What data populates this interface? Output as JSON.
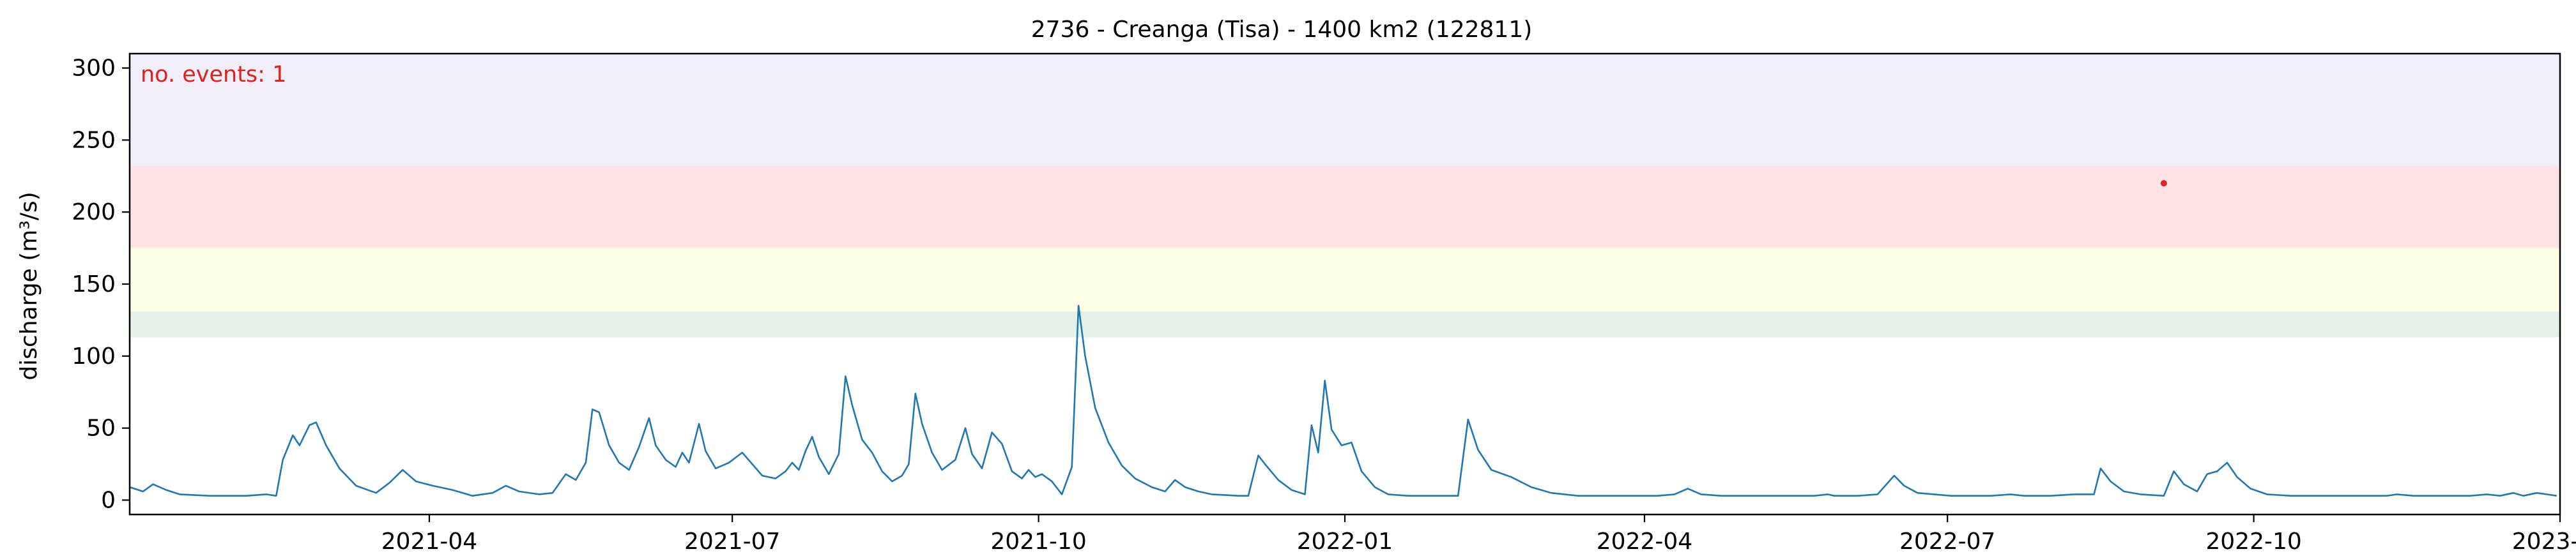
{
  "chart_data": {
    "type": "line",
    "title": "2736 - Creanga (Tisa) - 1400 km2 (122811)",
    "xlabel": "",
    "ylabel": "discharge (m³/s)",
    "xlim": [
      "2021-01-01",
      "2023-01-01"
    ],
    "ylim": [
      -10,
      310
    ],
    "x_ticks": [
      "2021-04",
      "2021-07",
      "2021-10",
      "2022-01",
      "2022-04",
      "2022-07",
      "2022-10",
      "2023-01"
    ],
    "y_ticks": [
      0,
      50,
      100,
      150,
      200,
      250,
      300
    ],
    "grid": false,
    "annotation": "no. events: 1",
    "threshold_bands": [
      {
        "from": 113,
        "to": 131,
        "color": "#e3f1e6"
      },
      {
        "from": 131,
        "to": 175,
        "color": "#fefee5"
      },
      {
        "from": 175,
        "to": 232,
        "color": "#fee2e4"
      },
      {
        "from": 232,
        "to": 310,
        "color": "#f1eefa"
      }
    ],
    "series": [
      {
        "color": "#1f77b4",
        "points": [
          [
            "2021-01-01",
            9
          ],
          [
            "2021-01-05",
            6
          ],
          [
            "2021-01-08",
            11
          ],
          [
            "2021-01-12",
            7
          ],
          [
            "2021-01-16",
            4
          ],
          [
            "2021-01-25",
            3
          ],
          [
            "2021-02-05",
            3
          ],
          [
            "2021-02-11",
            4
          ],
          [
            "2021-02-14",
            3
          ],
          [
            "2021-02-16",
            28
          ],
          [
            "2021-02-19",
            45
          ],
          [
            "2021-02-21",
            38
          ],
          [
            "2021-02-24",
            52
          ],
          [
            "2021-02-26",
            54
          ],
          [
            "2021-03-01",
            38
          ],
          [
            "2021-03-05",
            22
          ],
          [
            "2021-03-10",
            10
          ],
          [
            "2021-03-16",
            5
          ],
          [
            "2021-03-20",
            12
          ],
          [
            "2021-03-24",
            21
          ],
          [
            "2021-03-28",
            13
          ],
          [
            "2021-04-02",
            10
          ],
          [
            "2021-04-08",
            7
          ],
          [
            "2021-04-14",
            3
          ],
          [
            "2021-04-20",
            5
          ],
          [
            "2021-04-24",
            10
          ],
          [
            "2021-04-28",
            6
          ],
          [
            "2021-05-04",
            4
          ],
          [
            "2021-05-08",
            5
          ],
          [
            "2021-05-12",
            18
          ],
          [
            "2021-05-15",
            14
          ],
          [
            "2021-05-18",
            26
          ],
          [
            "2021-05-20",
            63
          ],
          [
            "2021-05-22",
            61
          ],
          [
            "2021-05-25",
            38
          ],
          [
            "2021-05-28",
            26
          ],
          [
            "2021-05-31",
            21
          ],
          [
            "2021-06-03",
            37
          ],
          [
            "2021-06-06",
            57
          ],
          [
            "2021-06-08",
            38
          ],
          [
            "2021-06-11",
            28
          ],
          [
            "2021-06-14",
            23
          ],
          [
            "2021-06-16",
            33
          ],
          [
            "2021-06-18",
            26
          ],
          [
            "2021-06-21",
            53
          ],
          [
            "2021-06-23",
            34
          ],
          [
            "2021-06-26",
            22
          ],
          [
            "2021-06-30",
            26
          ],
          [
            "2021-07-04",
            33
          ],
          [
            "2021-07-07",
            25
          ],
          [
            "2021-07-10",
            17
          ],
          [
            "2021-07-14",
            15
          ],
          [
            "2021-07-17",
            20
          ],
          [
            "2021-07-19",
            26
          ],
          [
            "2021-07-21",
            21
          ],
          [
            "2021-07-23",
            34
          ],
          [
            "2021-07-25",
            44
          ],
          [
            "2021-07-27",
            30
          ],
          [
            "2021-07-30",
            18
          ],
          [
            "2021-08-02",
            32
          ],
          [
            "2021-08-04",
            86
          ],
          [
            "2021-08-06",
            66
          ],
          [
            "2021-08-09",
            42
          ],
          [
            "2021-08-12",
            33
          ],
          [
            "2021-08-15",
            20
          ],
          [
            "2021-08-18",
            13
          ],
          [
            "2021-08-21",
            17
          ],
          [
            "2021-08-23",
            25
          ],
          [
            "2021-08-25",
            74
          ],
          [
            "2021-08-27",
            53
          ],
          [
            "2021-08-30",
            33
          ],
          [
            "2021-09-02",
            21
          ],
          [
            "2021-09-06",
            28
          ],
          [
            "2021-09-09",
            50
          ],
          [
            "2021-09-11",
            32
          ],
          [
            "2021-09-14",
            22
          ],
          [
            "2021-09-17",
            47
          ],
          [
            "2021-09-20",
            39
          ],
          [
            "2021-09-23",
            20
          ],
          [
            "2021-09-26",
            15
          ],
          [
            "2021-09-28",
            21
          ],
          [
            "2021-09-30",
            16
          ],
          [
            "2021-10-02",
            18
          ],
          [
            "2021-10-05",
            13
          ],
          [
            "2021-10-08",
            4
          ],
          [
            "2021-10-11",
            23
          ],
          [
            "2021-10-13",
            135
          ],
          [
            "2021-10-15",
            100
          ],
          [
            "2021-10-18",
            64
          ],
          [
            "2021-10-22",
            40
          ],
          [
            "2021-10-26",
            24
          ],
          [
            "2021-10-30",
            15
          ],
          [
            "2021-11-04",
            9
          ],
          [
            "2021-11-08",
            6
          ],
          [
            "2021-11-11",
            14
          ],
          [
            "2021-11-14",
            9
          ],
          [
            "2021-11-18",
            6
          ],
          [
            "2021-11-22",
            4
          ],
          [
            "2021-11-30",
            3
          ],
          [
            "2021-12-03",
            3
          ],
          [
            "2021-12-06",
            31
          ],
          [
            "2021-12-08",
            25
          ],
          [
            "2021-12-12",
            14
          ],
          [
            "2021-12-16",
            7
          ],
          [
            "2021-12-20",
            4
          ],
          [
            "2021-12-22",
            52
          ],
          [
            "2021-12-24",
            33
          ],
          [
            "2021-12-26",
            83
          ],
          [
            "2021-12-28",
            49
          ],
          [
            "2021-12-31",
            38
          ],
          [
            "2022-01-03",
            40
          ],
          [
            "2022-01-06",
            20
          ],
          [
            "2022-01-10",
            9
          ],
          [
            "2022-01-14",
            4
          ],
          [
            "2022-01-20",
            3
          ],
          [
            "2022-01-30",
            3
          ],
          [
            "2022-02-04",
            3
          ],
          [
            "2022-02-07",
            56
          ],
          [
            "2022-02-10",
            35
          ],
          [
            "2022-02-14",
            21
          ],
          [
            "2022-02-20",
            16
          ],
          [
            "2022-02-26",
            9
          ],
          [
            "2022-03-04",
            5
          ],
          [
            "2022-03-12",
            3
          ],
          [
            "2022-03-25",
            3
          ],
          [
            "2022-04-05",
            3
          ],
          [
            "2022-04-10",
            4
          ],
          [
            "2022-04-14",
            8
          ],
          [
            "2022-04-18",
            4
          ],
          [
            "2022-04-24",
            3
          ],
          [
            "2022-05-08",
            3
          ],
          [
            "2022-05-22",
            3
          ],
          [
            "2022-05-26",
            4
          ],
          [
            "2022-05-28",
            3
          ],
          [
            "2022-06-04",
            3
          ],
          [
            "2022-06-10",
            4
          ],
          [
            "2022-06-15",
            17
          ],
          [
            "2022-06-18",
            10
          ],
          [
            "2022-06-22",
            5
          ],
          [
            "2022-07-02",
            3
          ],
          [
            "2022-07-14",
            3
          ],
          [
            "2022-07-20",
            4
          ],
          [
            "2022-07-24",
            3
          ],
          [
            "2022-08-01",
            3
          ],
          [
            "2022-08-08",
            4
          ],
          [
            "2022-08-14",
            4
          ],
          [
            "2022-08-16",
            22
          ],
          [
            "2022-08-19",
            13
          ],
          [
            "2022-08-23",
            6
          ],
          [
            "2022-08-28",
            4
          ],
          [
            "2022-09-04",
            3
          ],
          [
            "2022-09-07",
            20
          ],
          [
            "2022-09-10",
            11
          ],
          [
            "2022-09-14",
            6
          ],
          [
            "2022-09-17",
            18
          ],
          [
            "2022-09-20",
            20
          ],
          [
            "2022-09-23",
            26
          ],
          [
            "2022-09-26",
            16
          ],
          [
            "2022-09-30",
            8
          ],
          [
            "2022-10-05",
            4
          ],
          [
            "2022-10-12",
            3
          ],
          [
            "2022-10-20",
            3
          ],
          [
            "2022-11-01",
            3
          ],
          [
            "2022-11-10",
            3
          ],
          [
            "2022-11-13",
            4
          ],
          [
            "2022-11-18",
            3
          ],
          [
            "2022-11-24",
            3
          ],
          [
            "2022-11-30",
            3
          ],
          [
            "2022-12-05",
            3
          ],
          [
            "2022-12-10",
            4
          ],
          [
            "2022-12-14",
            3
          ],
          [
            "2022-12-18",
            5
          ],
          [
            "2022-12-21",
            3
          ],
          [
            "2022-12-25",
            5
          ],
          [
            "2022-12-28",
            4
          ],
          [
            "2022-12-31",
            3
          ]
        ]
      }
    ],
    "event_markers": [
      {
        "x": "2022-09-04",
        "y": 220,
        "color": "#d62728"
      }
    ]
  }
}
